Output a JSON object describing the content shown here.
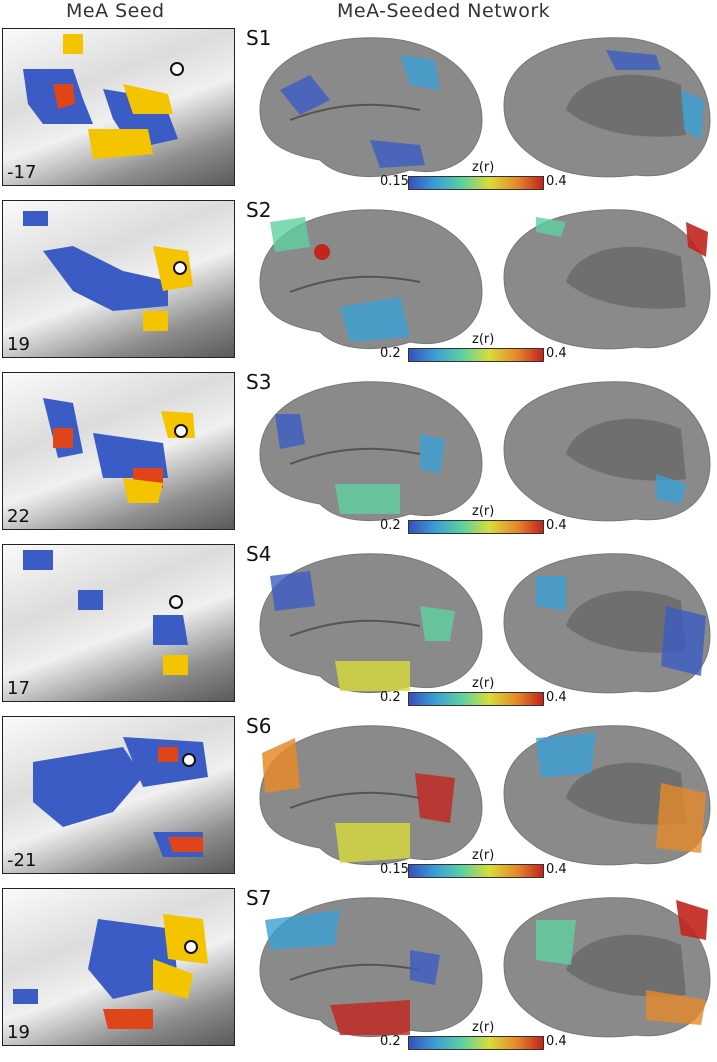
{
  "headers": {
    "seed": "MeA Seed",
    "network": "MeA-Seeded Network"
  },
  "colorbar_label": "z(r)",
  "rows": [
    {
      "subject": "S1",
      "slice": "-17",
      "cmin": "0.15",
      "cmax": "0.4"
    },
    {
      "subject": "S2",
      "slice": "19",
      "cmin": "0.2",
      "cmax": "0.4"
    },
    {
      "subject": "S3",
      "slice": "22",
      "cmin": "0.2",
      "cmax": "0.4"
    },
    {
      "subject": "S4",
      "slice": "17",
      "cmin": "0.2",
      "cmax": "0.4"
    },
    {
      "subject": "S6",
      "slice": "-21",
      "cmin": "0.15",
      "cmax": "0.4"
    },
    {
      "subject": "S7",
      "slice": "19",
      "cmin": "0.2",
      "cmax": "0.4"
    }
  ],
  "colors": {
    "network_blue": "#3b5cc4",
    "seed_yellow": "#f5c400",
    "overlap_red": "#e0451a",
    "cortex_gray": "#8a8a8a"
  }
}
